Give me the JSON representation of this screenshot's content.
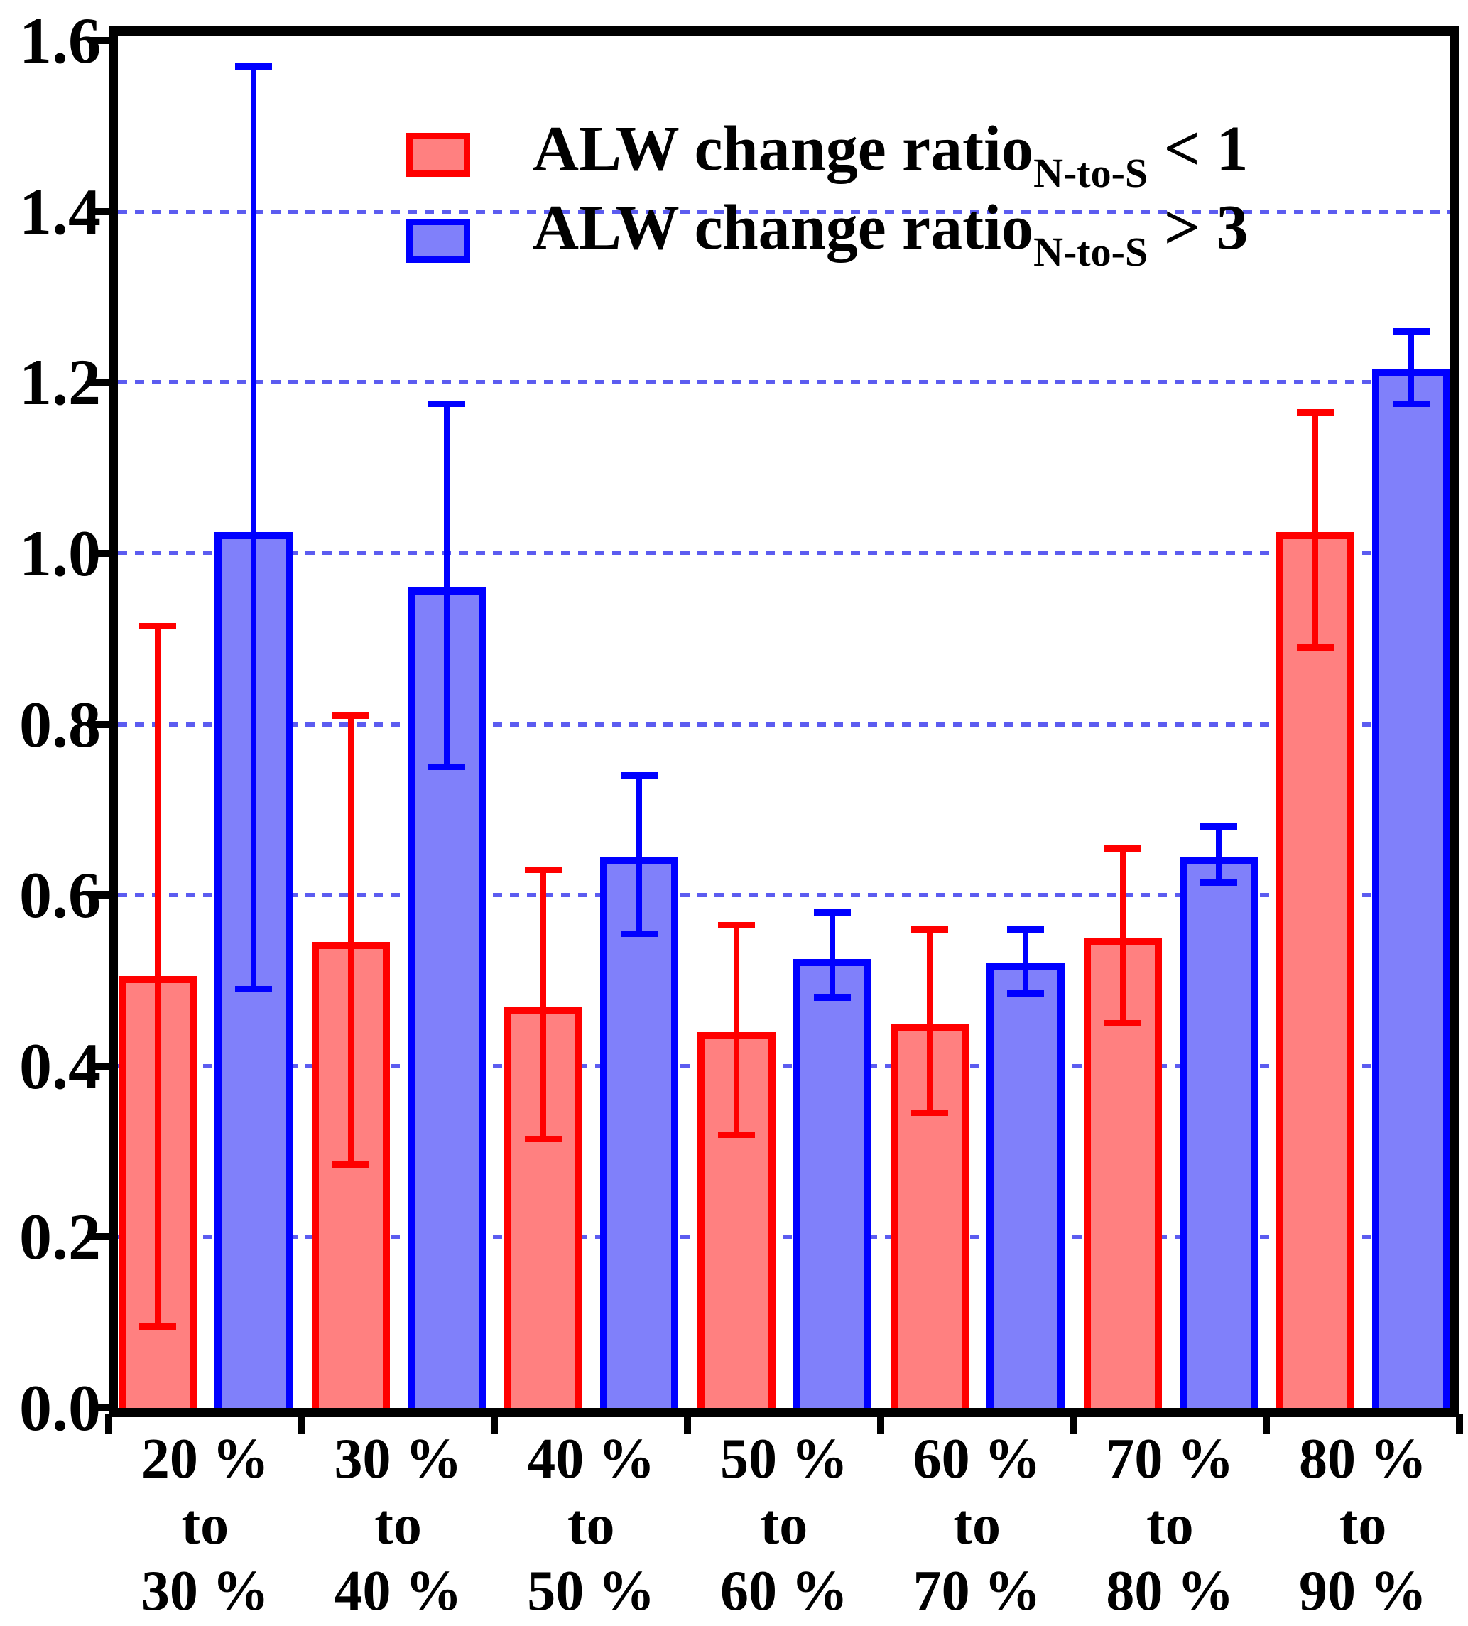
{
  "figure_background": "#ffffff",
  "axes": {
    "frame_color": "#000000",
    "tick_color": "#000000",
    "ylim": [
      0,
      1.6
    ]
  },
  "legend": {
    "items": [
      {
        "label_main": "ALW change ratio",
        "label_sub": "N-to-S",
        "label_suffix": " < 1",
        "swatch_edge": "#ff0000",
        "swatch_fill": "#ff8080"
      },
      {
        "label_main": "ALW change ratio",
        "label_sub": "N-to-S",
        "label_suffix": " > 3",
        "swatch_edge": "#0000ff",
        "swatch_fill": "#8080fa"
      }
    ]
  },
  "chart_data": {
    "type": "bar",
    "title": "",
    "xlabel": "",
    "ylabel": "",
    "ylim": [
      0,
      1.6
    ],
    "y_tick_step": 0.2,
    "y_ticks": [
      "0.0",
      "0.2",
      "0.4",
      "0.6",
      "0.8",
      "1.0",
      "1.2",
      "1.4",
      "1.6"
    ],
    "grid": {
      "axis": "y",
      "style": "dashed",
      "color": "#5c5cf0",
      "at": [
        0.2,
        0.4,
        0.6,
        0.8,
        1.0,
        1.2,
        1.4
      ]
    },
    "legend_position": "upper-left-inside",
    "categories": [
      "20 % to 30 %",
      "30 % to 40 %",
      "40 % to 50 %",
      "50 % to 60 %",
      "60 % to 70 %",
      "70 % to 80 %",
      "80 % to 90 %"
    ],
    "categories_multiline": [
      [
        "20 %",
        "to",
        "30 %"
      ],
      [
        "30 %",
        "to",
        "40 %"
      ],
      [
        "40 %",
        "to",
        "50 %"
      ],
      [
        "50 %",
        "to",
        "60 %"
      ],
      [
        "60 %",
        "to",
        "70 %"
      ],
      [
        "70 %",
        "to",
        "80 %"
      ],
      [
        "80 %",
        "to",
        "90 %"
      ]
    ],
    "series": [
      {
        "name": "ALW change ratio N-to-S < 1",
        "slug": "red",
        "edge_color": "#ff0000",
        "fill_color": "#ff8080",
        "values": [
          0.505,
          0.545,
          0.47,
          0.44,
          0.45,
          0.55,
          1.025
        ],
        "err_top": [
          0.915,
          0.81,
          0.63,
          0.565,
          0.56,
          0.655,
          1.165
        ],
        "err_bottom": [
          0.095,
          0.285,
          0.315,
          0.32,
          0.345,
          0.45,
          0.89
        ]
      },
      {
        "name": "ALW change ratio N-to-S > 3",
        "slug": "blue",
        "edge_color": "#0000ff",
        "fill_color": "#8080fa",
        "values": [
          1.025,
          0.96,
          0.645,
          0.525,
          0.52,
          0.645,
          1.215
        ],
        "err_top": [
          1.57,
          1.175,
          0.74,
          0.58,
          0.56,
          0.68,
          1.26
        ],
        "err_bottom": [
          0.49,
          0.75,
          0.555,
          0.48,
          0.485,
          0.615,
          1.175
        ]
      }
    ]
  }
}
